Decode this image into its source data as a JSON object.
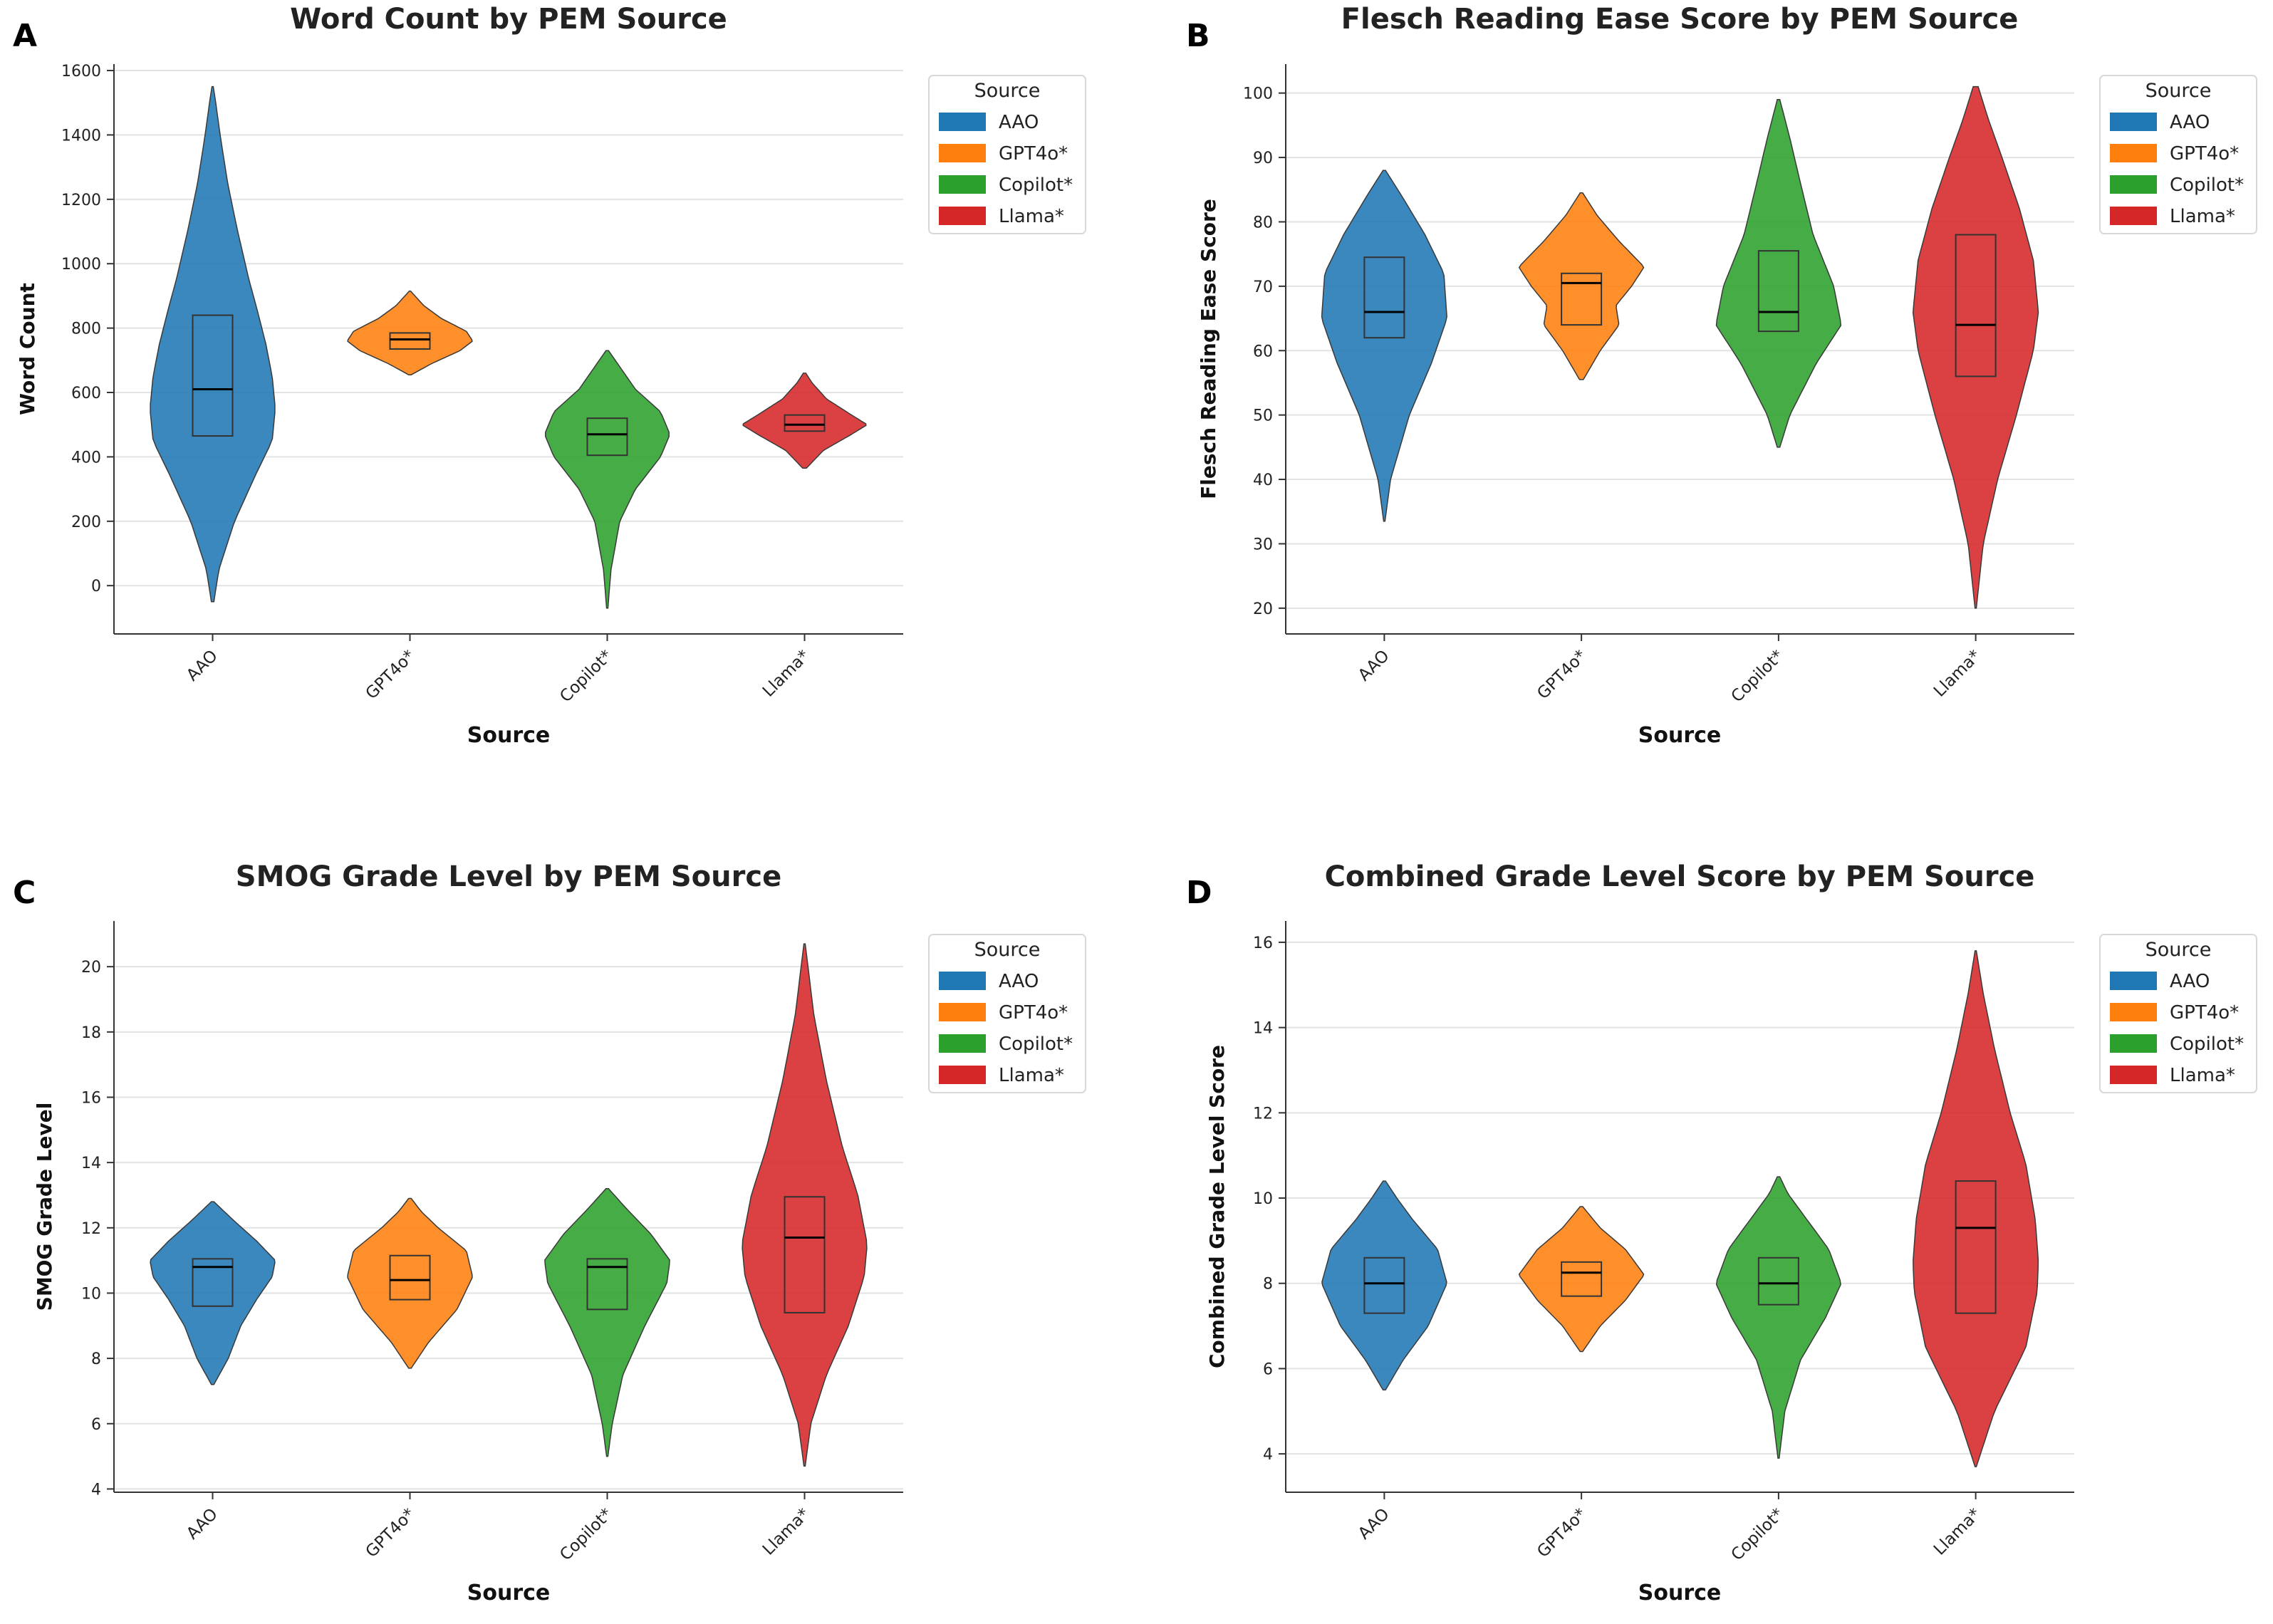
{
  "colors": {
    "AAO": "#1f77b4",
    "GPT4o*": "#ff7f0e",
    "Copilot*": "#2ca02c",
    "Llama*": "#d62728"
  },
  "chart_data": [
    {
      "panel": "A",
      "type": "violin",
      "title": "Word Count by PEM Source",
      "xlabel": "Source",
      "ylabel": "Word Count",
      "categories": [
        "AAO",
        "GPT4o*",
        "Copilot*",
        "Llama*"
      ],
      "ylim": [
        -150,
        1620
      ],
      "yticks": [
        0,
        200,
        400,
        600,
        800,
        1000,
        1200,
        1400,
        1600
      ],
      "legend": {
        "title": "Source",
        "items": [
          "AAO",
          "GPT4o*",
          "Copilot*",
          "Llama*"
        ],
        "position": "outside-right"
      },
      "violins": [
        {
          "category": "AAO",
          "min": -50,
          "max": 1550,
          "q1": 465,
          "median": 610,
          "q3": 840,
          "profile": [
            [
              -50,
              0.02
            ],
            [
              50,
              0.1
            ],
            [
              200,
              0.35
            ],
            [
              350,
              0.7
            ],
            [
              450,
              0.95
            ],
            [
              550,
              1.0
            ],
            [
              650,
              0.95
            ],
            [
              750,
              0.85
            ],
            [
              850,
              0.72
            ],
            [
              950,
              0.58
            ],
            [
              1100,
              0.4
            ],
            [
              1250,
              0.24
            ],
            [
              1400,
              0.12
            ],
            [
              1500,
              0.05
            ],
            [
              1550,
              0.01
            ]
          ]
        },
        {
          "category": "GPT4o*",
          "min": 655,
          "max": 915,
          "q1": 735,
          "median": 765,
          "q3": 785,
          "profile": [
            [
              655,
              0.02
            ],
            [
              690,
              0.35
            ],
            [
              730,
              0.8
            ],
            [
              760,
              1.0
            ],
            [
              790,
              0.9
            ],
            [
              830,
              0.5
            ],
            [
              870,
              0.22
            ],
            [
              900,
              0.08
            ],
            [
              915,
              0.01
            ]
          ]
        },
        {
          "category": "Copilot*",
          "min": -70,
          "max": 730,
          "q1": 405,
          "median": 470,
          "q3": 520,
          "profile": [
            [
              -70,
              0.01
            ],
            [
              50,
              0.06
            ],
            [
              200,
              0.2
            ],
            [
              300,
              0.45
            ],
            [
              400,
              0.85
            ],
            [
              470,
              1.0
            ],
            [
              540,
              0.85
            ],
            [
              610,
              0.45
            ],
            [
              680,
              0.2
            ],
            [
              730,
              0.02
            ]
          ]
        },
        {
          "category": "Llama*",
          "min": 365,
          "max": 660,
          "q1": 480,
          "median": 500,
          "q3": 530,
          "profile": [
            [
              365,
              0.03
            ],
            [
              420,
              0.3
            ],
            [
              470,
              0.75
            ],
            [
              500,
              1.0
            ],
            [
              530,
              0.75
            ],
            [
              580,
              0.35
            ],
            [
              630,
              0.12
            ],
            [
              660,
              0.02
            ]
          ]
        }
      ]
    },
    {
      "panel": "B",
      "type": "violin",
      "title": "Flesch Reading Ease Score by PEM Source",
      "xlabel": "Source",
      "ylabel": "Flesch Reading Ease Score",
      "categories": [
        "AAO",
        "GPT4o*",
        "Copilot*",
        "Llama*"
      ],
      "ylim": [
        16,
        104.5
      ],
      "yticks": [
        20,
        30,
        40,
        50,
        60,
        70,
        80,
        90,
        100
      ],
      "legend": {
        "title": "Source",
        "items": [
          "AAO",
          "GPT4o*",
          "Copilot*",
          "Llama*"
        ],
        "position": "outside-right"
      },
      "violins": [
        {
          "category": "AAO",
          "min": 33.5,
          "max": 88,
          "q1": 62,
          "median": 66,
          "q3": 74.5,
          "profile": [
            [
              33.5,
              0.01
            ],
            [
              40,
              0.1
            ],
            [
              50,
              0.4
            ],
            [
              58,
              0.75
            ],
            [
              65,
              1.0
            ],
            [
              72,
              0.95
            ],
            [
              78,
              0.65
            ],
            [
              84,
              0.28
            ],
            [
              88,
              0.02
            ]
          ]
        },
        {
          "category": "GPT4o*",
          "min": 55.5,
          "max": 84.5,
          "q1": 64,
          "median": 70.5,
          "q3": 72,
          "profile": [
            [
              55.5,
              0.03
            ],
            [
              60,
              0.3
            ],
            [
              64,
              0.6
            ],
            [
              67,
              0.55
            ],
            [
              70,
              0.8
            ],
            [
              73,
              1.0
            ],
            [
              77,
              0.6
            ],
            [
              81,
              0.25
            ],
            [
              84.5,
              0.02
            ]
          ]
        },
        {
          "category": "Copilot*",
          "min": 45,
          "max": 99,
          "q1": 63,
          "median": 66,
          "q3": 75.5,
          "profile": [
            [
              45,
              0.02
            ],
            [
              50,
              0.18
            ],
            [
              58,
              0.6
            ],
            [
              64,
              1.0
            ],
            [
              70,
              0.88
            ],
            [
              78,
              0.55
            ],
            [
              86,
              0.35
            ],
            [
              93,
              0.18
            ],
            [
              99,
              0.02
            ]
          ]
        },
        {
          "category": "Llama*",
          "min": 20,
          "max": 101,
          "q1": 56,
          "median": 64,
          "q3": 78,
          "profile": [
            [
              20,
              0.01
            ],
            [
              30,
              0.12
            ],
            [
              40,
              0.35
            ],
            [
              50,
              0.65
            ],
            [
              60,
              0.92
            ],
            [
              66,
              1.0
            ],
            [
              74,
              0.92
            ],
            [
              82,
              0.7
            ],
            [
              90,
              0.42
            ],
            [
              96,
              0.2
            ],
            [
              101,
              0.04
            ]
          ]
        }
      ]
    },
    {
      "panel": "C",
      "type": "violin",
      "title": "SMOG Grade Level by PEM Source",
      "xlabel": "Source",
      "ylabel": "SMOG Grade Level",
      "categories": [
        "AAO",
        "GPT4o*",
        "Copilot*",
        "Llama*"
      ],
      "ylim": [
        3.9,
        21.4
      ],
      "yticks": [
        4,
        6,
        8,
        10,
        12,
        14,
        16,
        18,
        20
      ],
      "legend": {
        "title": "Source",
        "items": [
          "AAO",
          "GPT4o*",
          "Copilot*",
          "Llama*"
        ],
        "position": "outside-right"
      },
      "violins": [
        {
          "category": "AAO",
          "min": 7.2,
          "max": 12.8,
          "q1": 9.6,
          "median": 10.8,
          "q3": 11.05,
          "profile": [
            [
              7.2,
              0.02
            ],
            [
              8.0,
              0.25
            ],
            [
              9.0,
              0.45
            ],
            [
              9.8,
              0.7
            ],
            [
              10.5,
              0.95
            ],
            [
              11.0,
              1.0
            ],
            [
              11.6,
              0.7
            ],
            [
              12.2,
              0.35
            ],
            [
              12.8,
              0.02
            ]
          ]
        },
        {
          "category": "GPT4o*",
          "min": 7.7,
          "max": 12.9,
          "q1": 9.8,
          "median": 10.4,
          "q3": 11.15,
          "profile": [
            [
              7.7,
              0.02
            ],
            [
              8.5,
              0.3
            ],
            [
              9.5,
              0.75
            ],
            [
              10.5,
              1.0
            ],
            [
              11.3,
              0.9
            ],
            [
              12.0,
              0.45
            ],
            [
              12.5,
              0.18
            ],
            [
              12.9,
              0.02
            ]
          ]
        },
        {
          "category": "Copilot*",
          "min": 5.0,
          "max": 13.2,
          "q1": 9.5,
          "median": 10.8,
          "q3": 11.05,
          "profile": [
            [
              5.0,
              0.01
            ],
            [
              6.0,
              0.08
            ],
            [
              7.5,
              0.25
            ],
            [
              9.0,
              0.6
            ],
            [
              10.3,
              0.95
            ],
            [
              11.0,
              1.0
            ],
            [
              11.8,
              0.7
            ],
            [
              12.6,
              0.3
            ],
            [
              13.2,
              0.02
            ]
          ]
        },
        {
          "category": "Llama*",
          "min": 4.7,
          "max": 20.7,
          "q1": 9.4,
          "median": 11.7,
          "q3": 12.95,
          "profile": [
            [
              4.7,
              0.01
            ],
            [
              6.0,
              0.1
            ],
            [
              7.5,
              0.35
            ],
            [
              9.0,
              0.7
            ],
            [
              10.5,
              0.95
            ],
            [
              11.5,
              1.0
            ],
            [
              13.0,
              0.85
            ],
            [
              14.5,
              0.6
            ],
            [
              16.5,
              0.35
            ],
            [
              18.5,
              0.15
            ],
            [
              20.7,
              0.01
            ]
          ]
        }
      ]
    },
    {
      "panel": "D",
      "type": "violin",
      "title": "Combined Grade Level Score by PEM Source",
      "xlabel": "Source",
      "ylabel": "Combined Grade Level Score",
      "categories": [
        "AAO",
        "GPT4o*",
        "Copilot*",
        "Llama*"
      ],
      "ylim": [
        3.1,
        16.5
      ],
      "yticks": [
        4,
        6,
        8,
        10,
        12,
        14,
        16
      ],
      "legend": {
        "title": "Source",
        "items": [
          "AAO",
          "GPT4o*",
          "Copilot*",
          "Llama*"
        ],
        "position": "outside-right"
      },
      "violins": [
        {
          "category": "AAO",
          "min": 5.5,
          "max": 10.4,
          "q1": 7.3,
          "median": 8.0,
          "q3": 8.6,
          "profile": [
            [
              5.5,
              0.02
            ],
            [
              6.2,
              0.3
            ],
            [
              7.0,
              0.7
            ],
            [
              8.0,
              1.0
            ],
            [
              8.8,
              0.85
            ],
            [
              9.5,
              0.45
            ],
            [
              10.0,
              0.2
            ],
            [
              10.4,
              0.02
            ]
          ]
        },
        {
          "category": "GPT4o*",
          "min": 6.4,
          "max": 9.8,
          "q1": 7.7,
          "median": 8.25,
          "q3": 8.5,
          "profile": [
            [
              6.4,
              0.02
            ],
            [
              7.0,
              0.3
            ],
            [
              7.6,
              0.7
            ],
            [
              8.2,
              1.0
            ],
            [
              8.8,
              0.7
            ],
            [
              9.3,
              0.3
            ],
            [
              9.8,
              0.02
            ]
          ]
        },
        {
          "category": "Copilot*",
          "min": 3.9,
          "max": 10.5,
          "q1": 7.5,
          "median": 8.0,
          "q3": 8.6,
          "profile": [
            [
              3.9,
              0.01
            ],
            [
              5.0,
              0.1
            ],
            [
              6.2,
              0.35
            ],
            [
              7.2,
              0.75
            ],
            [
              8.0,
              1.0
            ],
            [
              8.8,
              0.8
            ],
            [
              9.6,
              0.4
            ],
            [
              10.1,
              0.15
            ],
            [
              10.5,
              0.02
            ]
          ]
        },
        {
          "category": "Llama*",
          "min": 3.7,
          "max": 15.8,
          "q1": 7.3,
          "median": 9.3,
          "q3": 10.4,
          "profile": [
            [
              3.7,
              0.01
            ],
            [
              5.0,
              0.3
            ],
            [
              6.5,
              0.8
            ],
            [
              7.8,
              0.98
            ],
            [
              8.5,
              1.0
            ],
            [
              9.5,
              0.95
            ],
            [
              10.8,
              0.8
            ],
            [
              12.0,
              0.55
            ],
            [
              13.5,
              0.3
            ],
            [
              14.8,
              0.12
            ],
            [
              15.8,
              0.01
            ]
          ]
        }
      ]
    }
  ]
}
